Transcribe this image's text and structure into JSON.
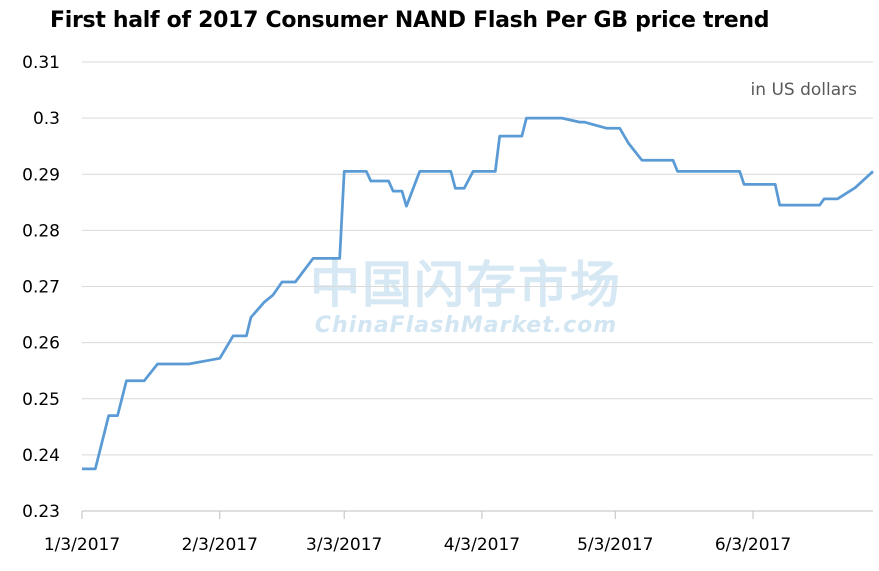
{
  "chart_data": {
    "type": "line",
    "title": "First half of 2017 Consumer NAND Flash Per GB price trend",
    "units_note": "in US dollars",
    "watermark_cn": "中国闪存市场",
    "watermark_en": "ChinaFlashMarket.com",
    "x_tick_labels": [
      "1/3/2017",
      "2/3/2017",
      "3/3/2017",
      "4/3/2017",
      "5/3/2017",
      "6/3/2017"
    ],
    "x_tick_dates": [
      "2017-01-03",
      "2017-02-03",
      "2017-03-03",
      "2017-04-03",
      "2017-05-03",
      "2017-06-03"
    ],
    "ylim": [
      0.23,
      0.31
    ],
    "y_ticks": [
      "0.23",
      "0.24",
      "0.25",
      "0.26",
      "0.27",
      "0.28",
      "0.29",
      "0.3",
      "0.31"
    ],
    "grid": true,
    "line_color": "#5b9bd5",
    "series": [
      {
        "x": [
          "2017-01-03",
          "2017-01-06",
          "2017-01-09",
          "2017-01-11",
          "2017-01-13",
          "2017-01-17",
          "2017-01-20",
          "2017-01-23",
          "2017-01-27",
          "2017-02-03",
          "2017-02-06",
          "2017-02-09",
          "2017-02-10",
          "2017-02-13",
          "2017-02-15",
          "2017-02-17",
          "2017-02-20",
          "2017-02-24",
          "2017-02-27",
          "2017-03-02",
          "2017-03-03",
          "2017-03-08",
          "2017-03-09",
          "2017-03-13",
          "2017-03-14",
          "2017-03-16",
          "2017-03-17",
          "2017-03-20",
          "2017-03-27",
          "2017-03-28",
          "2017-03-30",
          "2017-04-01",
          "2017-04-06",
          "2017-04-07",
          "2017-04-12",
          "2017-04-13",
          "2017-04-21",
          "2017-04-25",
          "2017-04-26",
          "2017-05-01",
          "2017-05-04",
          "2017-05-06",
          "2017-05-09",
          "2017-05-16",
          "2017-05-17",
          "2017-05-31",
          "2017-06-01",
          "2017-06-08",
          "2017-06-09",
          "2017-06-18",
          "2017-06-19",
          "2017-06-22",
          "2017-06-26",
          "2017-06-30"
        ],
        "values": [
          0.2375,
          0.2375,
          0.247,
          0.247,
          0.2532,
          0.2532,
          0.2562,
          0.2562,
          0.2562,
          0.2572,
          0.2612,
          0.2612,
          0.2645,
          0.2672,
          0.2685,
          0.2708,
          0.2708,
          0.275,
          0.275,
          0.275,
          0.2905,
          0.2905,
          0.2888,
          0.2888,
          0.287,
          0.287,
          0.2843,
          0.2905,
          0.2905,
          0.2875,
          0.2875,
          0.2905,
          0.2905,
          0.2968,
          0.2968,
          0.3,
          0.3,
          0.2993,
          0.2993,
          0.2982,
          0.2982,
          0.2955,
          0.2925,
          0.2925,
          0.2905,
          0.2905,
          0.2882,
          0.2882,
          0.2845,
          0.2845,
          0.2856,
          0.2856,
          0.2876,
          0.2905
        ]
      }
    ]
  }
}
